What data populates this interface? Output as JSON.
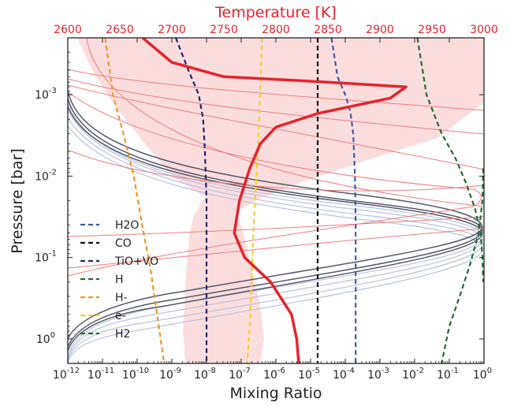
{
  "chart_data": {
    "type": "line",
    "xlabel": "Mixing Ratio",
    "ylabel": "Pressure [bar]",
    "top_xlabel": "Temperature [K]",
    "x_scale": "log",
    "y_scale": "log",
    "xlim": [
      1e-12,
      1
    ],
    "ylim": [
      2,
      0.0002
    ],
    "top_xlim": [
      2600,
      3000
    ],
    "x_tick_labels": [
      {
        "base": "10",
        "exp": "-12",
        "value": 1e-12
      },
      {
        "base": "10",
        "exp": "-11",
        "value": 1e-11
      },
      {
        "base": "10",
        "exp": "-10",
        "value": 1e-10
      },
      {
        "base": "10",
        "exp": "-9",
        "value": 1e-09
      },
      {
        "base": "10",
        "exp": "-8",
        "value": 1e-08
      },
      {
        "base": "10",
        "exp": "-7",
        "value": 1e-07
      },
      {
        "base": "10",
        "exp": "-6",
        "value": 1e-06
      },
      {
        "base": "10",
        "exp": "-5",
        "value": 1e-05
      },
      {
        "base": "10",
        "exp": "-4",
        "value": 0.0001
      },
      {
        "base": "10",
        "exp": "-3",
        "value": 0.001
      },
      {
        "base": "10",
        "exp": "-2",
        "value": 0.01
      },
      {
        "base": "10",
        "exp": "-1",
        "value": 0.1
      },
      {
        "base": "10",
        "exp": "0",
        "value": 1
      }
    ],
    "y_tick_labels": [
      {
        "base": "10",
        "exp": "-3",
        "value": 0.001
      },
      {
        "base": "10",
        "exp": "-2",
        "value": 0.01
      },
      {
        "base": "10",
        "exp": "-1",
        "value": 0.1
      },
      {
        "base": "10",
        "exp": "0",
        "value": 1
      }
    ],
    "top_tick_labels": [
      "2600",
      "2650",
      "2700",
      "2750",
      "2800",
      "2850",
      "2900",
      "2950",
      "3000"
    ],
    "top_tick_values": [
      2600,
      2650,
      2700,
      2750,
      2800,
      2850,
      2900,
      2950,
      3000
    ],
    "legend": {
      "position": "lower-left",
      "entries": [
        {
          "name": "H2O",
          "color": "#3b5ba9"
        },
        {
          "name": "CO",
          "color": "#111111"
        },
        {
          "name": "TiO+VO",
          "color": "#24246e"
        },
        {
          "name": "H",
          "color": "#1f6b2e"
        },
        {
          "name": "H-",
          "color": "#f0962a"
        },
        {
          "name": "e-",
          "color": "#f4d21f"
        },
        {
          "name": "H2",
          "color": "#1f6b2e"
        }
      ]
    },
    "series": [
      {
        "name": "H2O",
        "color": "#3b5ba9",
        "style": "dashed",
        "axis": "mixing",
        "points": [
          [
            4e-05,
            0.0002
          ],
          [
            6e-05,
            0.0006
          ],
          [
            0.0001,
            0.001
          ],
          [
            0.00014,
            0.0016
          ],
          [
            0.00017,
            0.003
          ],
          [
            0.00019,
            0.01
          ],
          [
            0.0002,
            0.04
          ],
          [
            0.0002,
            0.2
          ],
          [
            0.0002,
            2
          ]
        ]
      },
      {
        "name": "CO",
        "color": "#111111",
        "style": "dashed",
        "axis": "mixing",
        "points": [
          [
            1.6e-05,
            0.0002
          ],
          [
            1.6e-05,
            0.001
          ],
          [
            1.6e-05,
            0.01
          ],
          [
            1.6e-05,
            0.1
          ],
          [
            1.6e-05,
            1
          ],
          [
            1.6e-05,
            2
          ]
        ]
      },
      {
        "name": "TiO+VO",
        "color": "#24246e",
        "style": "dashed",
        "axis": "mixing",
        "points": [
          [
            1.3e-09,
            0.0002
          ],
          [
            3e-09,
            0.0005
          ],
          [
            6e-09,
            0.001
          ],
          [
            8e-09,
            0.002
          ],
          [
            9e-09,
            0.005
          ],
          [
            1e-08,
            0.02
          ],
          [
            1e-08,
            0.2
          ],
          [
            1e-08,
            2
          ]
        ]
      },
      {
        "name": "H",
        "color": "#1f6b2e",
        "style": "dashed",
        "axis": "mixing",
        "points": [
          [
            0.012,
            0.0002
          ],
          [
            0.022,
            0.001
          ],
          [
            0.06,
            0.003
          ],
          [
            0.15,
            0.006
          ],
          [
            0.3,
            0.012
          ],
          [
            0.55,
            0.025
          ],
          [
            0.8,
            0.05
          ],
          [
            0.9,
            0.1
          ],
          [
            0.95,
            0.2
          ]
        ]
      },
      {
        "name": "H-",
        "color": "#f0962a",
        "style": "dashed",
        "axis": "mixing",
        "points": [
          [
            1.2e-11,
            0.0002
          ],
          [
            2e-11,
            0.001
          ],
          [
            4e-11,
            0.003
          ],
          [
            8e-11,
            0.01
          ],
          [
            1.4e-10,
            0.04
          ],
          [
            2.5e-10,
            0.15
          ],
          [
            4e-10,
            0.6
          ],
          [
            6e-10,
            2
          ]
        ]
      },
      {
        "name": "e-",
        "color": "#f4d21f",
        "style": "dashed",
        "axis": "mixing",
        "points": [
          [
            4e-07,
            0.0002
          ],
          [
            3.5e-07,
            0.001
          ],
          [
            3e-07,
            0.005
          ],
          [
            2.5e-07,
            0.02
          ],
          [
            2.2e-07,
            0.06
          ],
          [
            2e-07,
            0.2
          ],
          [
            1.8e-07,
            0.6
          ],
          [
            1.5e-07,
            2
          ]
        ]
      },
      {
        "name": "H2",
        "color": "#1f6b2e",
        "style": "dashed",
        "axis": "mixing",
        "points": [
          [
            0.95,
            0.008
          ],
          [
            0.9,
            0.02
          ],
          [
            0.7,
            0.05
          ],
          [
            0.4,
            0.12
          ],
          [
            0.2,
            0.3
          ],
          [
            0.1,
            0.7
          ],
          [
            0.06,
            2
          ]
        ]
      },
      {
        "name": "",
        "color": "#e8222b",
        "style": "solid",
        "axis": "temperature",
        "points": [
          [
            2672,
            0.0002
          ],
          [
            2700,
            0.0004
          ],
          [
            2750,
            0.0006
          ],
          [
            2850,
            0.0007
          ],
          [
            2925,
            0.0008
          ],
          [
            2910,
            0.0011
          ],
          [
            2840,
            0.0017
          ],
          [
            2800,
            0.0025
          ],
          [
            2785,
            0.004
          ],
          [
            2775,
            0.008
          ],
          [
            2765,
            0.02
          ],
          [
            2760,
            0.05
          ],
          [
            2770,
            0.1
          ],
          [
            2795,
            0.2
          ],
          [
            2815,
            0.5
          ],
          [
            2820,
            1
          ],
          [
            2822,
            2
          ]
        ]
      }
    ]
  }
}
